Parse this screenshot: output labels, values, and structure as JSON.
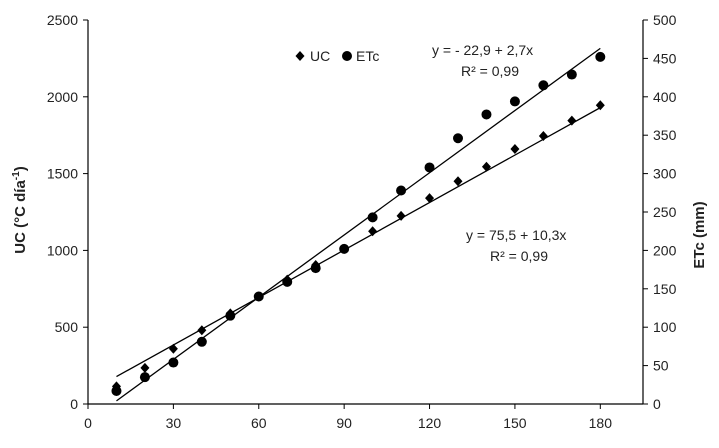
{
  "chart_data": {
    "type": "scatter",
    "title": "",
    "xlabel": "",
    "ylabel": "UC (°C día-1)",
    "ylabel_main": "UC (°C día",
    "ylabel_sup": "-1",
    "ylabel_close": ")",
    "y2label": "ETc (mm)",
    "xlim": [
      0,
      195
    ],
    "ylim": [
      0,
      2500
    ],
    "y2lim": [
      0,
      500
    ],
    "x_ticks": [
      0,
      30,
      60,
      90,
      120,
      150,
      180
    ],
    "y_ticks": [
      0,
      500,
      1000,
      1500,
      2000,
      2500
    ],
    "y2_ticks": [
      0,
      50,
      100,
      150,
      200,
      250,
      300,
      350,
      400,
      450,
      500
    ],
    "grid": false,
    "legend_position": "top-center",
    "series": [
      {
        "name": "UC",
        "axis": "left",
        "marker": "diamond",
        "x": [
          10,
          20,
          30,
          40,
          50,
          60,
          70,
          80,
          90,
          100,
          110,
          120,
          130,
          140,
          150,
          160,
          170,
          180
        ],
        "values": [
          115,
          235,
          360,
          480,
          590,
          700,
          810,
          905,
          1010,
          1125,
          1225,
          1340,
          1450,
          1545,
          1660,
          1745,
          1845,
          1945
        ]
      },
      {
        "name": "ETc",
        "axis": "right",
        "marker": "circle",
        "x": [
          10,
          20,
          30,
          40,
          50,
          60,
          70,
          80,
          90,
          100,
          110,
          120,
          130,
          140,
          150,
          160,
          170,
          180
        ],
        "values": [
          17,
          35,
          54,
          81,
          115,
          140,
          159,
          177,
          202,
          243,
          278,
          308,
          346,
          377,
          394,
          415,
          429,
          452
        ]
      }
    ],
    "trendlines": [
      {
        "series": "UC",
        "axis": "left",
        "intercept": 75.5,
        "slope": 10.3,
        "x_range": [
          10,
          180
        ]
      },
      {
        "series": "ETc",
        "axis": "right",
        "intercept": -22.9,
        "slope": 2.7,
        "x_range": [
          10,
          180
        ]
      }
    ],
    "annotations": {
      "etc_equation": "y = - 22,9 + 2,7x",
      "etc_r2": "R² = 0,99",
      "uc_equation": "y = 75,5 + 10,3x",
      "uc_r2": "R² = 0,99"
    },
    "colors": {
      "marker": "#000000",
      "line": "#000000",
      "axis": "#000000"
    }
  }
}
